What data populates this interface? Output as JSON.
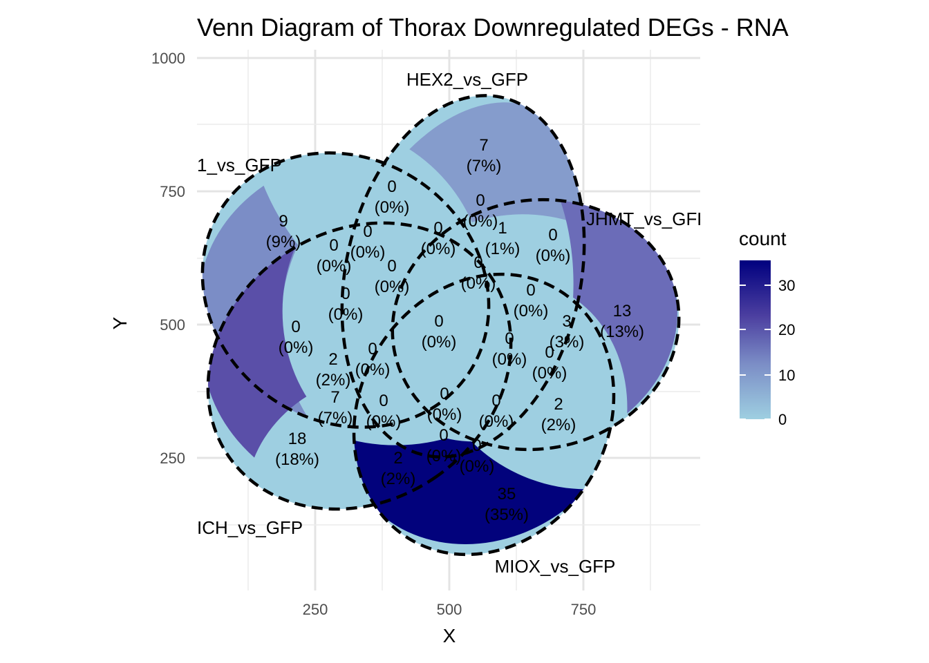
{
  "chart_data": {
    "type": "venn",
    "title": "Venn Diagram of Thorax Downregulated DEGs - RNA",
    "xlabel": "X",
    "ylabel": "Y",
    "x_ticks": [
      "250",
      "500",
      "750"
    ],
    "y_ticks": [
      "1000",
      "750",
      "500",
      "250"
    ],
    "grid": true,
    "sets": [
      "1_vs_GFP",
      "HEX2_vs_GFP",
      "JHMT_vs_GFP",
      "MIOX_vs_GFP",
      "ICH_vs_GFP"
    ],
    "legend": {
      "title": "count",
      "ticks": [
        "30",
        "20",
        "10",
        "0"
      ],
      "range": [
        0,
        35
      ],
      "low_color": "#9ecfe1",
      "high_color": "#00007f",
      "position": "right"
    },
    "regions": [
      {
        "count": "9",
        "pct": "(9%)"
      },
      {
        "count": "7",
        "pct": "(7%)"
      },
      {
        "count": "13",
        "pct": "(13%)"
      },
      {
        "count": "35",
        "pct": "(35%)"
      },
      {
        "count": "18",
        "pct": "(18%)"
      },
      {
        "count": "0",
        "pct": "(0%)"
      },
      {
        "count": "0",
        "pct": "(0%)"
      },
      {
        "count": "0",
        "pct": "(0%)"
      },
      {
        "count": "0",
        "pct": "(0%)"
      },
      {
        "count": "0",
        "pct": "(0%)"
      },
      {
        "count": "0",
        "pct": "(0%)"
      },
      {
        "count": "1",
        "pct": "(1%)"
      },
      {
        "count": "0",
        "pct": "(0%)"
      },
      {
        "count": "0",
        "pct": "(0%)"
      },
      {
        "count": "0",
        "pct": "(0%)"
      },
      {
        "count": "0",
        "pct": "(0%)"
      },
      {
        "count": "0",
        "pct": "(0%)"
      },
      {
        "count": "0",
        "pct": "(0%)"
      },
      {
        "count": "3",
        "pct": "(3%)"
      },
      {
        "count": "0",
        "pct": "(0%)"
      },
      {
        "count": "0",
        "pct": "(0%)"
      },
      {
        "count": "2",
        "pct": "(2%)"
      },
      {
        "count": "0",
        "pct": "(0%)"
      },
      {
        "count": "7",
        "pct": "(7%)"
      },
      {
        "count": "0",
        "pct": "(0%)"
      },
      {
        "count": "0",
        "pct": "(0%)"
      },
      {
        "count": "0",
        "pct": "(0%)"
      },
      {
        "count": "2",
        "pct": "(2%)"
      },
      {
        "count": "2",
        "pct": "(2%)"
      },
      {
        "count": "0",
        "pct": "(0%)"
      },
      {
        "count": "0",
        "pct": "(0%)"
      }
    ],
    "unique_colors": [
      "#7b8dc6",
      "#859ccc",
      "#6b6cb8",
      "#02027c",
      "#5a4fa8"
    ]
  }
}
